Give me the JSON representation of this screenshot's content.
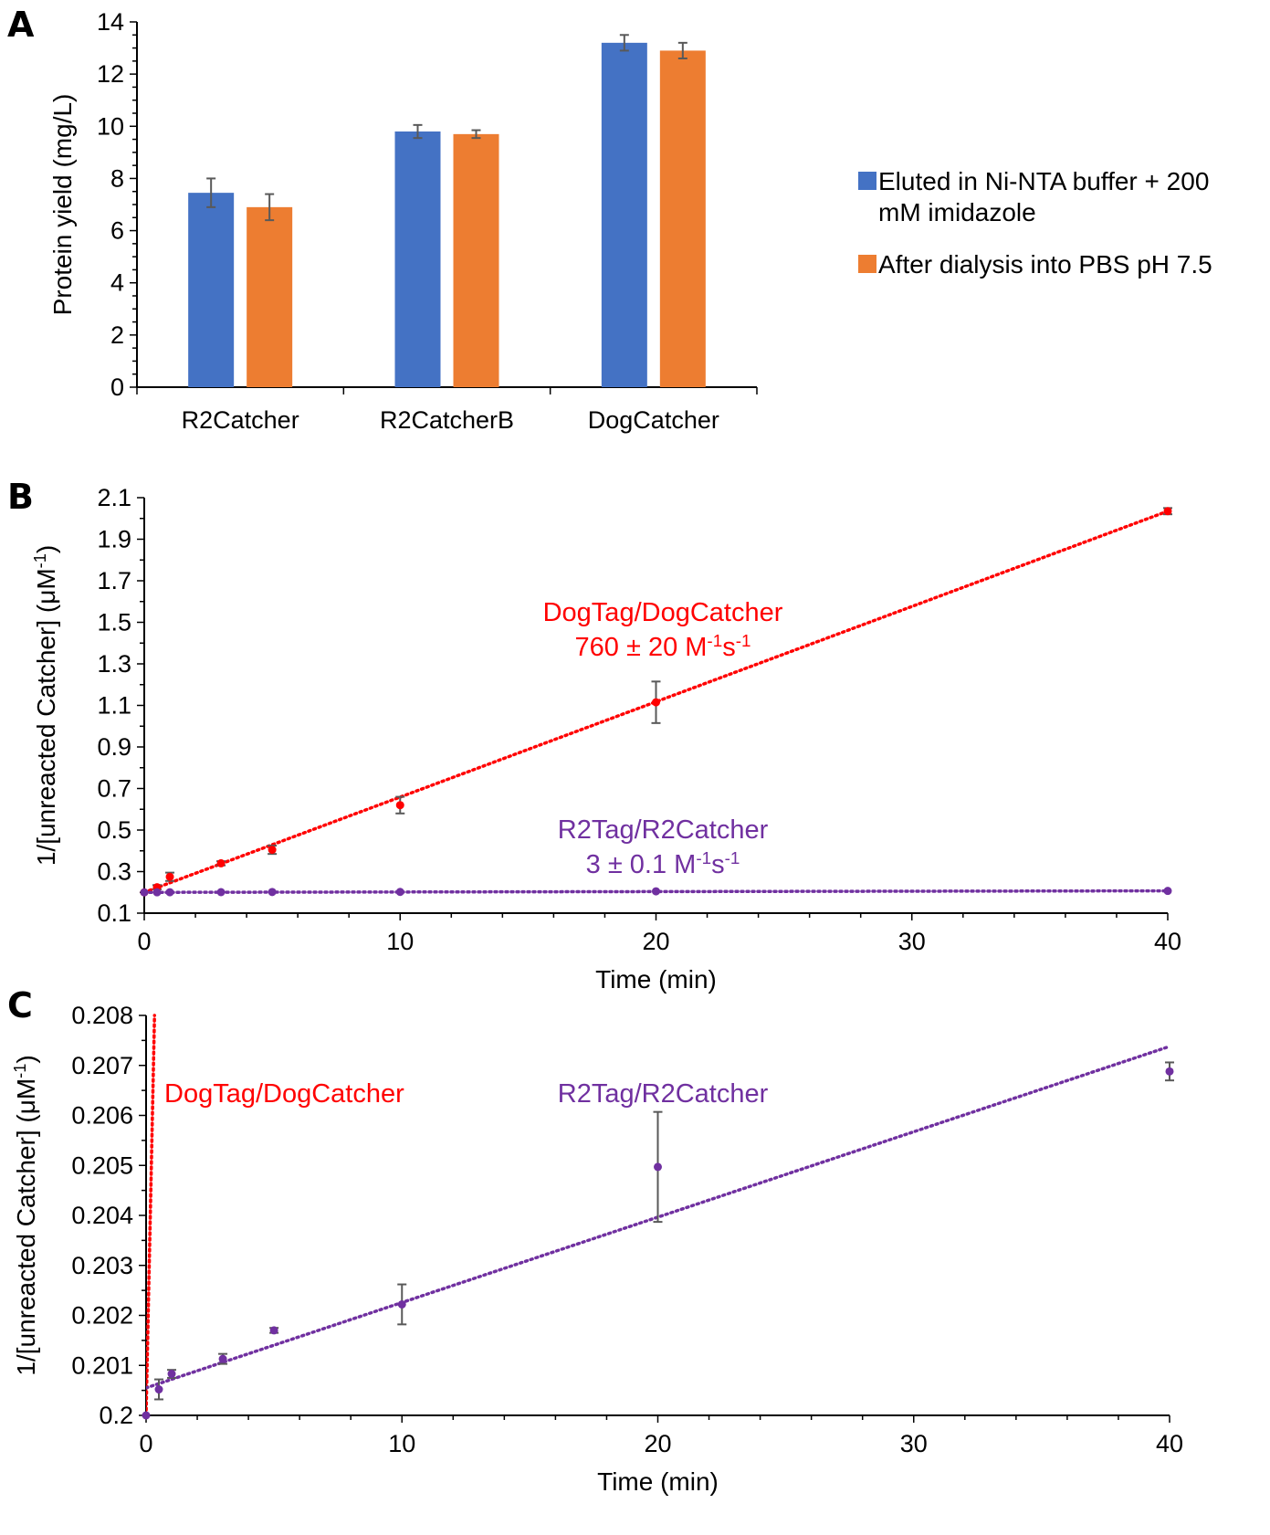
{
  "chart_data": [
    {
      "panel": "A",
      "type": "bar",
      "ylabel": "Protein yield (mg/L)",
      "xlabel": "",
      "ylim": [
        0,
        14
      ],
      "yticks": [
        0,
        2,
        4,
        6,
        8,
        10,
        12,
        14
      ],
      "categories": [
        "R2Catcher",
        "R2CatcherB",
        "DogCatcher"
      ],
      "legend_position": "right",
      "series": [
        {
          "name": "Eluted in Ni-NTA buffer + 200 mM imidazole",
          "legend_lines": [
            "Eluted in Ni-NTA buffer + 200",
            "mM imidazole"
          ],
          "color": "#4472C4",
          "values": [
            7.45,
            9.8,
            13.2
          ],
          "errors": [
            0.55,
            0.25,
            0.3
          ]
        },
        {
          "name": "After dialysis into PBS pH 7.5",
          "legend_lines": [
            "After dialysis into PBS pH 7.5"
          ],
          "color": "#ED7D31",
          "values": [
            6.9,
            9.7,
            12.9
          ],
          "errors": [
            0.5,
            0.15,
            0.3
          ]
        }
      ]
    },
    {
      "panel": "B",
      "type": "scatter",
      "xlabel": "Time (min)",
      "ylabel": "1/[unreacted Catcher] (μM⁻¹)",
      "ylabel_parts": [
        "1/[unreacted Catcher] (μM",
        "-1",
        ")"
      ],
      "xlim": [
        0,
        40
      ],
      "ylim": [
        0.1,
        2.1
      ],
      "xticks": [
        0,
        10,
        20,
        30,
        40
      ],
      "yticks": [
        0.1,
        0.3,
        0.5,
        0.7,
        0.9,
        1.1,
        1.3,
        1.5,
        1.7,
        1.9,
        2.1
      ],
      "series": [
        {
          "name": "DogTag/DogCatcher",
          "rate": "760 ± 20 M⁻¹s⁻¹",
          "rate_parts": [
            "760 ± 20 M",
            "-1",
            "s",
            "-1"
          ],
          "color": "#FF0000",
          "x": [
            0,
            0.5,
            1,
            3,
            5,
            10,
            20,
            40
          ],
          "y": [
            0.2,
            0.225,
            0.275,
            0.34,
            0.405,
            0.62,
            1.115,
            2.035
          ],
          "errors": [
            0,
            0.01,
            0.02,
            0.01,
            0.02,
            0.04,
            0.1,
            0.015
          ],
          "trendline": [
            [
              0,
              0.2
            ],
            [
              40,
              2.035
            ]
          ]
        },
        {
          "name": "R2Tag/R2Catcher",
          "rate": "3 ± 0.1 M⁻¹s⁻¹",
          "rate_parts": [
            "3 ± 0.1 M",
            "-1",
            "s",
            "-1"
          ],
          "color": "#7030A0",
          "x": [
            0,
            0.5,
            1,
            3,
            5,
            10,
            20,
            40
          ],
          "y": [
            0.2,
            0.2005,
            0.2008,
            0.2011,
            0.2017,
            0.2022,
            0.205,
            0.2069
          ],
          "errors": [
            0,
            0,
            0,
            0,
            0,
            0,
            0,
            0
          ],
          "trendline": [
            [
              0,
              0.2
            ],
            [
              40,
              0.2074
            ]
          ]
        }
      ]
    },
    {
      "panel": "C",
      "type": "scatter",
      "xlabel": "Time (min)",
      "ylabel": "1/[unreacted Catcher] (μM⁻¹)",
      "ylabel_parts": [
        "1/[unreacted Catcher] (μM",
        "-1",
        ")"
      ],
      "xlim": [
        0,
        40
      ],
      "ylim": [
        0.2,
        0.208
      ],
      "xticks": [
        0,
        10,
        20,
        30,
        40
      ],
      "yticks": [
        0.2,
        0.201,
        0.202,
        0.203,
        0.204,
        0.205,
        0.206,
        0.207,
        0.208
      ],
      "ytick_labels": [
        "0.2",
        "0.201",
        "0.202",
        "0.203",
        "0.204",
        "0.205",
        "0.206",
        "0.207",
        "0.208"
      ],
      "series": [
        {
          "name": "DogTag/DogCatcher",
          "color": "#FF0000",
          "x": [],
          "y": [],
          "trendline": [
            [
              0,
              0.2
            ],
            [
              0.33,
              0.208
            ]
          ]
        },
        {
          "name": "R2Tag/R2Catcher",
          "color": "#7030A0",
          "x": [
            0,
            0.5,
            1,
            3,
            5,
            10,
            20,
            40
          ],
          "y": [
            0.2,
            0.20052,
            0.20083,
            0.20113,
            0.2017,
            0.20222,
            0.20497,
            0.20688
          ],
          "errors": [
            0,
            0.0002,
            8e-05,
            0.0001,
            5e-05,
            0.0004,
            0.0011,
            0.00018
          ],
          "trendline": [
            [
              0,
              0.20055
            ],
            [
              40,
              0.20738
            ]
          ]
        }
      ]
    }
  ],
  "panel_labels": [
    "A",
    "B",
    "C"
  ],
  "legend_entries": [
    "Eluted in Ni-NTA buffer + 200",
    "mM imidazole",
    "After dialysis into PBS pH 7.5"
  ]
}
